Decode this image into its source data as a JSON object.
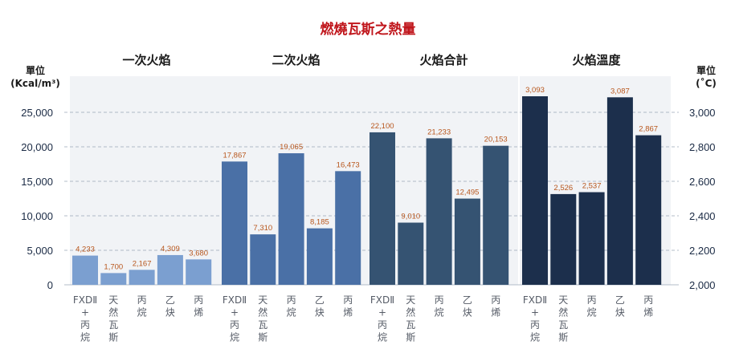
{
  "chart_data": {
    "type": "bar",
    "title": "燃燒瓦斯之熱量",
    "title_color": "#c0161c",
    "left_axis": {
      "label_lines": [
        "單位",
        "(Kcal/m³)"
      ],
      "ylim": [
        0,
        25000
      ],
      "ticks": [
        0,
        5000,
        10000,
        15000,
        20000,
        25000
      ],
      "tick_labels": [
        "0",
        "5,000",
        "10,000",
        "15,000",
        "20,000",
        "25,000"
      ]
    },
    "right_axis": {
      "label_lines": [
        "單位",
        "(˚C)"
      ],
      "ylim": [
        2000,
        3000
      ],
      "ticks": [
        2000,
        2200,
        2400,
        2600,
        2800,
        3000
      ],
      "tick_labels": [
        "2,000",
        "2,200",
        "2,400",
        "2,600",
        "2,800",
        "3,000"
      ]
    },
    "grid": "dashed",
    "categories": [
      "FXDⅡ\n+\n丙\n烷",
      "天\n然\n瓦\n斯",
      "丙\n烷",
      "乙\n炔",
      "丙\n烯"
    ],
    "groups": [
      {
        "name": "一次火焰",
        "axis": "left",
        "color": "#7b9fd0",
        "values": [
          4233,
          1700,
          2167,
          4309,
          3680
        ],
        "labels": [
          "4,233",
          "1,700",
          "2,167",
          "4,309",
          "3,680"
        ]
      },
      {
        "name": "二次火焰",
        "axis": "left",
        "color": "#4a70a6",
        "values": [
          17867,
          7310,
          19065,
          8185,
          16473
        ],
        "labels": [
          "17,867",
          "7,310",
          "19,065",
          "8,185",
          "16,473"
        ]
      },
      {
        "name": "火焰合計",
        "axis": "left",
        "color": "#355372",
        "values": [
          22100,
          9010,
          21233,
          12495,
          20153
        ],
        "labels": [
          "22,100",
          "9,010",
          "21,233",
          "12,495",
          "20,153"
        ]
      },
      {
        "name": "火焰溫度",
        "axis": "right",
        "color": "#1c2f4c",
        "values": [
          3093,
          2526,
          2537,
          3087,
          2867
        ],
        "labels": [
          "3,093",
          "2,526",
          "2,537",
          "3,087",
          "2,867"
        ]
      }
    ],
    "data_label_color": "#b8561c",
    "axis_text_color": "#1a2a44",
    "category_text_color": "#555b66"
  }
}
